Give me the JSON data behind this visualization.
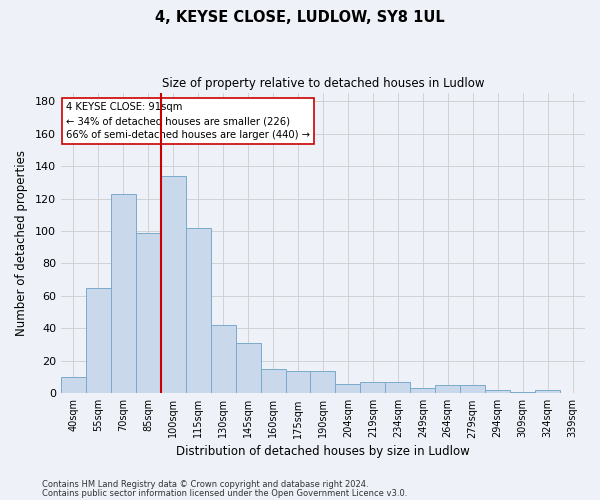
{
  "title1": "4, KEYSE CLOSE, LUDLOW, SY8 1UL",
  "title2": "Size of property relative to detached houses in Ludlow",
  "xlabel": "Distribution of detached houses by size in Ludlow",
  "ylabel": "Number of detached properties",
  "categories": [
    "40sqm",
    "55sqm",
    "70sqm",
    "85sqm",
    "100sqm",
    "115sqm",
    "130sqm",
    "145sqm",
    "160sqm",
    "175sqm",
    "190sqm",
    "204sqm",
    "219sqm",
    "234sqm",
    "249sqm",
    "264sqm",
    "279sqm",
    "294sqm",
    "309sqm",
    "324sqm",
    "339sqm"
  ],
  "values": [
    10,
    65,
    123,
    99,
    134,
    102,
    42,
    31,
    15,
    14,
    14,
    6,
    7,
    7,
    3,
    5,
    5,
    2,
    1,
    2,
    0
  ],
  "bar_color": "#c9d9eb",
  "bar_edge_color": "#7aaacc",
  "grid_color": "#cccccc",
  "vline_x": 3.5,
  "vline_color": "#cc0000",
  "annotation_line1": "4 KEYSE CLOSE: 91sqm",
  "annotation_line2": "← 34% of detached houses are smaller (226)",
  "annotation_line3": "66% of semi-detached houses are larger (440) →",
  "annotation_box_color": "#ffffff",
  "annotation_box_edge": "#cc0000",
  "ylim": [
    0,
    185
  ],
  "yticks": [
    0,
    20,
    40,
    60,
    80,
    100,
    120,
    140,
    160,
    180
  ],
  "footer1": "Contains HM Land Registry data © Crown copyright and database right 2024.",
  "footer2": "Contains public sector information licensed under the Open Government Licence v3.0.",
  "background_color": "#eef2f8"
}
